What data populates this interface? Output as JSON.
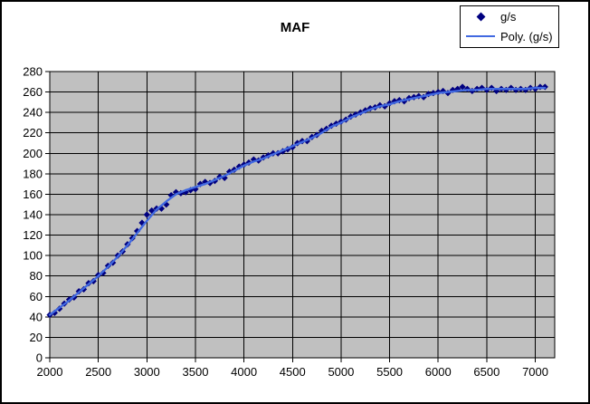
{
  "window": {
    "background_color": "#FFFFFF",
    "border_color": "#000000"
  },
  "chart_data": {
    "type": "scatter",
    "title": "MAF",
    "xlabel": "",
    "ylabel": "",
    "xlim": [
      2000,
      7200
    ],
    "ylim": [
      0,
      280
    ],
    "x_ticks": [
      2000,
      2500,
      3000,
      3500,
      4000,
      4500,
      5000,
      5500,
      6000,
      6500,
      7000
    ],
    "y_ticks": [
      0,
      20,
      40,
      60,
      80,
      100,
      120,
      140,
      160,
      180,
      200,
      220,
      240,
      260,
      280
    ],
    "grid": true,
    "plot_bg_color": "#C0C0C0",
    "grid_color": "#000000",
    "axis_text_color": "#000000",
    "legend_position": "top-right",
    "series": [
      {
        "name": "g/s",
        "type": "scatter",
        "marker": "diamond",
        "color": "#000080",
        "points": [
          [
            2000,
            42
          ],
          [
            2050,
            44
          ],
          [
            2100,
            48
          ],
          [
            2150,
            53
          ],
          [
            2200,
            57
          ],
          [
            2250,
            59
          ],
          [
            2300,
            65
          ],
          [
            2350,
            67
          ],
          [
            2400,
            73
          ],
          [
            2450,
            75
          ],
          [
            2500,
            81
          ],
          [
            2550,
            83
          ],
          [
            2600,
            90
          ],
          [
            2650,
            93
          ],
          [
            2700,
            100
          ],
          [
            2750,
            104
          ],
          [
            2800,
            111
          ],
          [
            2850,
            117
          ],
          [
            2900,
            124
          ],
          [
            2950,
            132
          ],
          [
            3000,
            140
          ],
          [
            3050,
            144
          ],
          [
            3100,
            146
          ],
          [
            3150,
            146
          ],
          [
            3200,
            150
          ],
          [
            3250,
            159
          ],
          [
            3300,
            162
          ],
          [
            3350,
            161
          ],
          [
            3400,
            162
          ],
          [
            3450,
            164
          ],
          [
            3500,
            165
          ],
          [
            3550,
            170
          ],
          [
            3600,
            172
          ],
          [
            3650,
            171
          ],
          [
            3700,
            173
          ],
          [
            3750,
            177
          ],
          [
            3800,
            176
          ],
          [
            3850,
            182
          ],
          [
            3900,
            184
          ],
          [
            3950,
            187
          ],
          [
            4000,
            189
          ],
          [
            4050,
            191
          ],
          [
            4100,
            194
          ],
          [
            4150,
            193
          ],
          [
            4200,
            196
          ],
          [
            4250,
            198
          ],
          [
            4300,
            200
          ],
          [
            4350,
            200
          ],
          [
            4400,
            202
          ],
          [
            4450,
            204
          ],
          [
            4500,
            206
          ],
          [
            4550,
            210
          ],
          [
            4600,
            212
          ],
          [
            4650,
            212
          ],
          [
            4700,
            216
          ],
          [
            4750,
            218
          ],
          [
            4800,
            222
          ],
          [
            4850,
            224
          ],
          [
            4900,
            227
          ],
          [
            4950,
            229
          ],
          [
            5000,
            231
          ],
          [
            5050,
            233
          ],
          [
            5100,
            236
          ],
          [
            5150,
            238
          ],
          [
            5200,
            240
          ],
          [
            5250,
            242
          ],
          [
            5300,
            244
          ],
          [
            5350,
            245
          ],
          [
            5400,
            247
          ],
          [
            5450,
            246
          ],
          [
            5500,
            249
          ],
          [
            5550,
            251
          ],
          [
            5600,
            252
          ],
          [
            5650,
            251
          ],
          [
            5700,
            254
          ],
          [
            5750,
            255
          ],
          [
            5800,
            256
          ],
          [
            5850,
            255
          ],
          [
            5900,
            258
          ],
          [
            5950,
            259
          ],
          [
            6000,
            260
          ],
          [
            6050,
            261
          ],
          [
            6100,
            259
          ],
          [
            6150,
            262
          ],
          [
            6200,
            263
          ],
          [
            6250,
            265
          ],
          [
            6300,
            263
          ],
          [
            6350,
            261
          ],
          [
            6400,
            263
          ],
          [
            6450,
            264
          ],
          [
            6500,
            262
          ],
          [
            6550,
            264
          ],
          [
            6600,
            261
          ],
          [
            6650,
            263
          ],
          [
            6700,
            262
          ],
          [
            6750,
            264
          ],
          [
            6800,
            262
          ],
          [
            6850,
            263
          ],
          [
            6900,
            262
          ],
          [
            6950,
            264
          ],
          [
            7000,
            263
          ],
          [
            7050,
            265
          ],
          [
            7100,
            265
          ]
        ]
      },
      {
        "name": "Poly. (g/s)",
        "type": "line",
        "color": "#4169E1",
        "points": [
          [
            2000,
            42
          ],
          [
            2100,
            49
          ],
          [
            2200,
            56
          ],
          [
            2300,
            64
          ],
          [
            2400,
            72
          ],
          [
            2500,
            80
          ],
          [
            2600,
            89
          ],
          [
            2700,
            99
          ],
          [
            2800,
            110
          ],
          [
            2900,
            122
          ],
          [
            3000,
            134
          ],
          [
            3100,
            145
          ],
          [
            3200,
            153
          ],
          [
            3300,
            160
          ],
          [
            3400,
            164
          ],
          [
            3500,
            167
          ],
          [
            3600,
            170
          ],
          [
            3700,
            174
          ],
          [
            3800,
            178
          ],
          [
            3900,
            183
          ],
          [
            4000,
            188
          ],
          [
            4100,
            192
          ],
          [
            4200,
            195
          ],
          [
            4300,
            199
          ],
          [
            4400,
            203
          ],
          [
            4500,
            207
          ],
          [
            4600,
            211
          ],
          [
            4700,
            215
          ],
          [
            4800,
            220
          ],
          [
            4900,
            226
          ],
          [
            5000,
            230
          ],
          [
            5100,
            235
          ],
          [
            5200,
            239
          ],
          [
            5300,
            243
          ],
          [
            5400,
            246
          ],
          [
            5500,
            248
          ],
          [
            5600,
            251
          ],
          [
            5700,
            253
          ],
          [
            5800,
            255
          ],
          [
            5900,
            257
          ],
          [
            6000,
            259
          ],
          [
            6100,
            260
          ],
          [
            6200,
            261
          ],
          [
            6300,
            262
          ],
          [
            6400,
            262
          ],
          [
            6500,
            263
          ],
          [
            6600,
            263
          ],
          [
            6700,
            263
          ],
          [
            6800,
            263
          ],
          [
            6900,
            263
          ],
          [
            7000,
            264
          ],
          [
            7100,
            264
          ]
        ]
      }
    ]
  }
}
